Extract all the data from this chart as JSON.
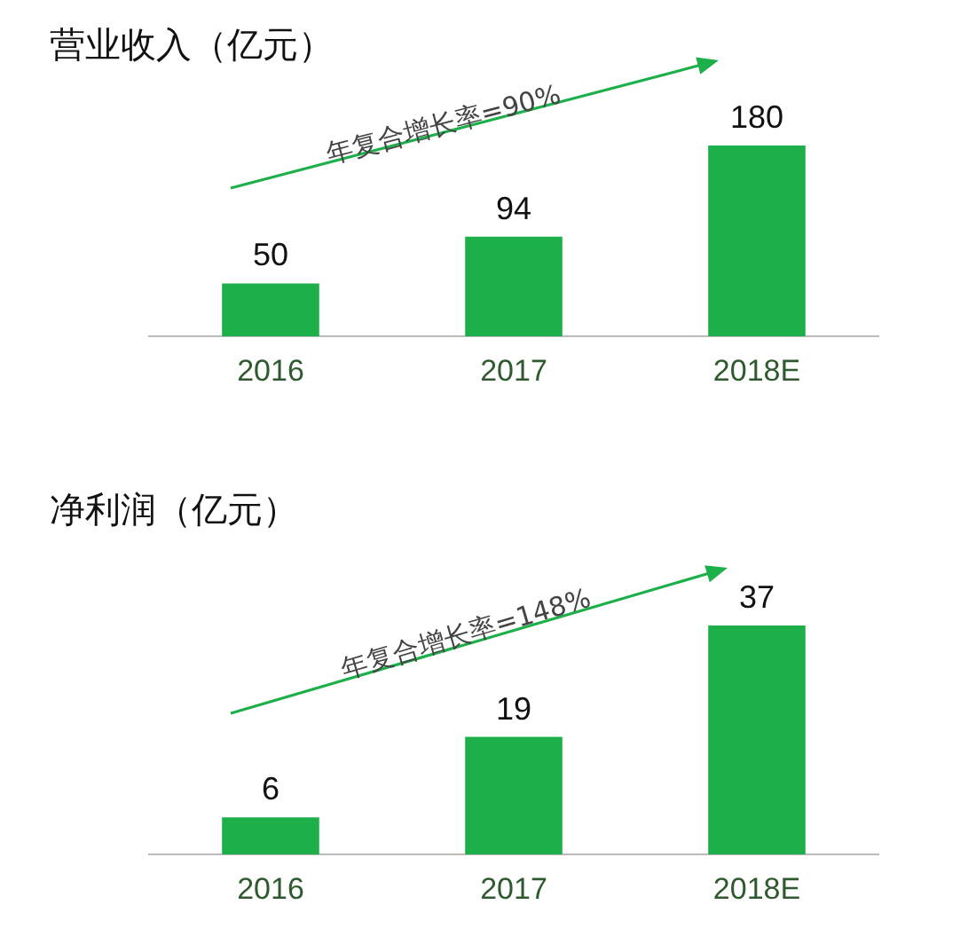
{
  "chart_data": [
    {
      "type": "bar",
      "title": "营业收入（亿元）",
      "categories": [
        "2016",
        "2017",
        "2018E"
      ],
      "values": [
        50,
        94,
        180
      ],
      "color": "#1db04a",
      "data_labels": true,
      "annotations": [
        "年复合增长率=90%"
      ]
    },
    {
      "type": "bar",
      "title": "净利润（亿元）",
      "categories": [
        "2016",
        "2017",
        "2018E"
      ],
      "values": [
        6,
        19,
        37
      ],
      "color": "#1db04a",
      "data_labels": true,
      "annotations": [
        "年复合增长率=148%"
      ]
    }
  ]
}
